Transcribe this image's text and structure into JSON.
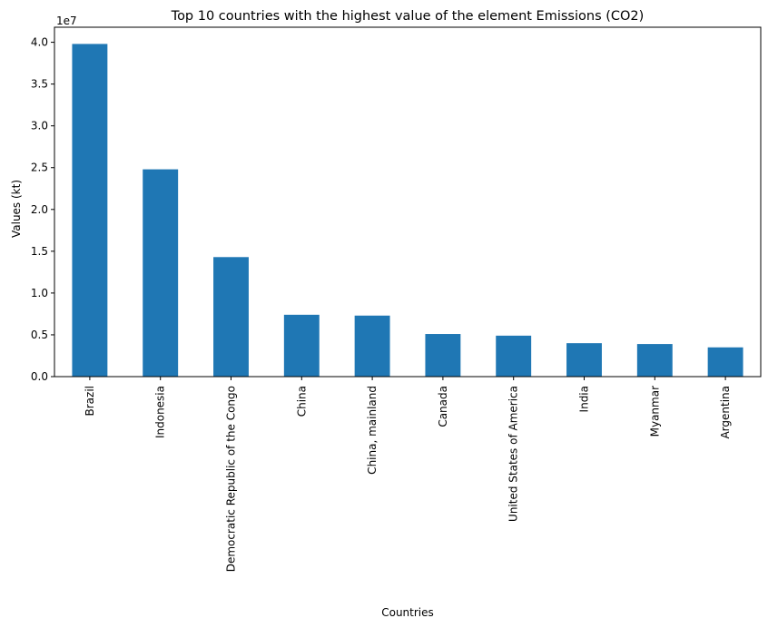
{
  "chart_data": {
    "type": "bar",
    "title": "Top 10 countries with the highest value of the element Emissions (CO2)",
    "xlabel": "Countries",
    "ylabel": "Values (kt)",
    "offset_label": "1e7",
    "categories": [
      "Brazil",
      "Indonesia",
      "Democratic Republic of the Congo",
      "China",
      "China, mainland",
      "Canada",
      "United States of America",
      "India",
      "Myanmar",
      "Argentina"
    ],
    "values": [
      39800000,
      24800000,
      14300000,
      7400000,
      7300000,
      5100000,
      4900000,
      4000000,
      3900000,
      3500000
    ],
    "ylim": [
      0,
      41800000
    ],
    "yticks": [
      0,
      5000000,
      10000000,
      15000000,
      20000000,
      25000000,
      30000000,
      35000000,
      40000000
    ],
    "ytick_labels": [
      "0.0",
      "0.5",
      "1.0",
      "1.5",
      "2.0",
      "2.5",
      "3.0",
      "3.5",
      "4.0"
    ],
    "bar_color": "#1f77b4",
    "grid": false,
    "legend": "none"
  }
}
